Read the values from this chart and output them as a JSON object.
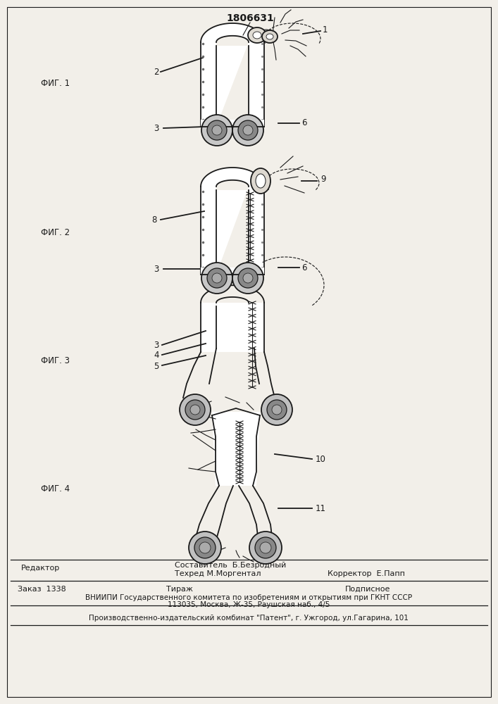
{
  "patent_number": "1806631",
  "fig_labels": [
    "ФИГ. 1",
    "ФИГ. 2",
    "ФИГ. 3",
    "ФИГ. 4"
  ],
  "bottom_text": {
    "editor": "Редактор",
    "compiler_label": "Составитель  Б.Безродный",
    "techred_label": "Техред М.Моргентал",
    "corrector_label": "Корректор  Е.Папп",
    "order": "Заказ  1338",
    "tirage": "Тираж",
    "podpisnoe": "Подписное",
    "vnipi_line1": "ВНИИПИ Государственного комитета по изобретениям и открытиям при ГКНТ СССР",
    "vnipi_line2": "113035, Москва, Ж-35, Раушская наб., 4/5",
    "factory": "Производственно-издательский комбинат \"Патент\", г. Ужгород, ул.Гагарина, 101"
  },
  "bg_color": "#f2efe9",
  "line_color": "#1a1a1a"
}
